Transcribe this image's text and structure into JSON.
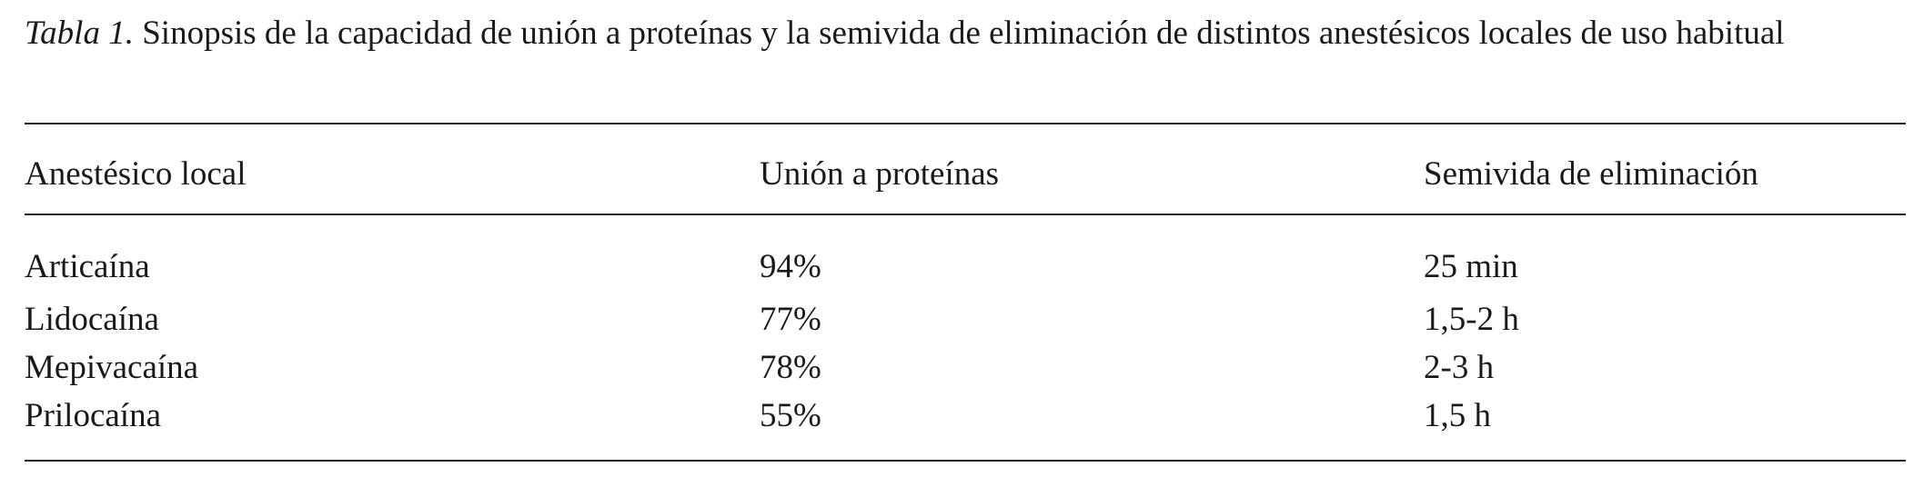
{
  "caption": {
    "label": "Tabla 1.",
    "text": "Sinopsis de la capacidad de unión a proteínas y la semivida de eliminación de distintos anestésicos locales de uso habitual"
  },
  "table": {
    "header": [
      "Anestésico local",
      "Unión a proteínas",
      "Semivida de eliminación"
    ],
    "rows": [
      [
        "Articaína",
        "94%",
        "25 min"
      ],
      [
        "Lidocaína",
        "77%",
        "1,5-2 h"
      ],
      [
        "Mepivacaína",
        "78%",
        "2-3 h"
      ],
      [
        "Prilocaína",
        "55%",
        "1,5 h"
      ]
    ]
  }
}
